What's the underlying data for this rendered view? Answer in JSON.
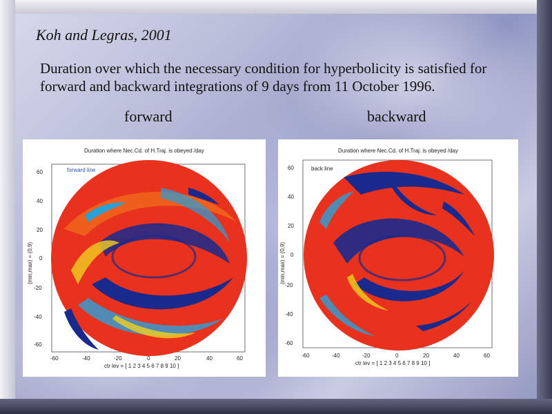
{
  "slide": {
    "author": "Koh and Legras, 2001",
    "description": "Duration over which the necessary condition for hyperbolicity is satisfied for forward and backward integrations of 9 days from 11 October 1996."
  },
  "figures": [
    {
      "label": "forward",
      "plot_title": "Duration where Nec.Cd. of H.Traj. is obeyed /day",
      "inline_label": "forward line",
      "ylabel": "(min,max) = (0,9)",
      "xlabel": "ctr lev = [ 1  2  3  4  5  6  7  8  9 10 ]",
      "yticks": [
        "60",
        "40",
        "20",
        "0",
        "-20",
        "-40",
        "-60"
      ],
      "xticks": [
        "-60",
        "-40",
        "-20",
        "0",
        "20",
        "40",
        "60"
      ]
    },
    {
      "label": "backward",
      "plot_title": "Duration where Nec.Cd. of H.Traj. is obeyed /day",
      "inline_label": "back line",
      "ylabel": "(min,max) = (0,9)",
      "xlabel": "ctr lev = [ 1  2  3  4  5  6  7  8  9 10 ]",
      "yticks": [
        "60",
        "40",
        "20",
        "0",
        "-20",
        "-40",
        "-60"
      ],
      "xticks": [
        "-60",
        "-40",
        "-20",
        "0",
        "20",
        "40",
        "60"
      ]
    }
  ],
  "colors": {
    "field": "#e8321e",
    "swirl": "#1a2a8c",
    "band": "#2aa0d8",
    "accent": "#f0d020"
  }
}
